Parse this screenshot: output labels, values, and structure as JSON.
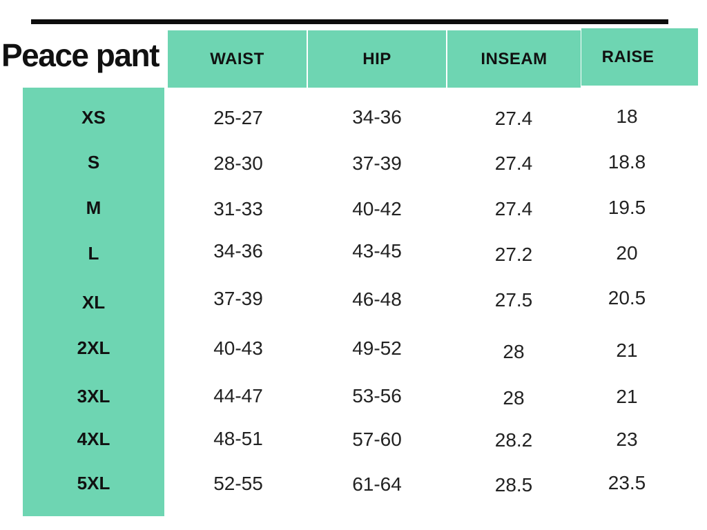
{
  "title": "Peace pant",
  "colors": {
    "accent": "#6ED5B2",
    "rule": "#0D0D0D",
    "heading_text": "#111111",
    "cell_text": "#222222",
    "background": "#FFFFFF"
  },
  "table": {
    "columns": [
      "WAIST",
      "HIP",
      "INSEAM",
      "RAISE"
    ],
    "size_column_header": "",
    "rows": [
      {
        "size": "XS",
        "waist": "25-27",
        "hip": "34-36",
        "inseam": "27.4",
        "raise": "18"
      },
      {
        "size": "S",
        "waist": "28-30",
        "hip": "37-39",
        "inseam": "27.4",
        "raise": "18.8"
      },
      {
        "size": "M",
        "waist": "31-33",
        "hip": "40-42",
        "inseam": "27.4",
        "raise": "19.5"
      },
      {
        "size": "L",
        "waist": "34-36",
        "hip": "43-45",
        "inseam": "27.2",
        "raise": "20"
      },
      {
        "size": "XL",
        "waist": "37-39",
        "hip": "46-48",
        "inseam": "27.5",
        "raise": "20.5"
      },
      {
        "size": "2XL",
        "waist": "40-43",
        "hip": "49-52",
        "inseam": "28",
        "raise": "21"
      },
      {
        "size": "3XL",
        "waist": "44-47",
        "hip": "53-56",
        "inseam": "28",
        "raise": "21"
      },
      {
        "size": "4XL",
        "waist": "48-51",
        "hip": "57-60",
        "inseam": "28.2",
        "raise": "23"
      },
      {
        "size": "5XL",
        "waist": "52-55",
        "hip": "61-64",
        "inseam": "28.5",
        "raise": "23.5"
      }
    ]
  }
}
